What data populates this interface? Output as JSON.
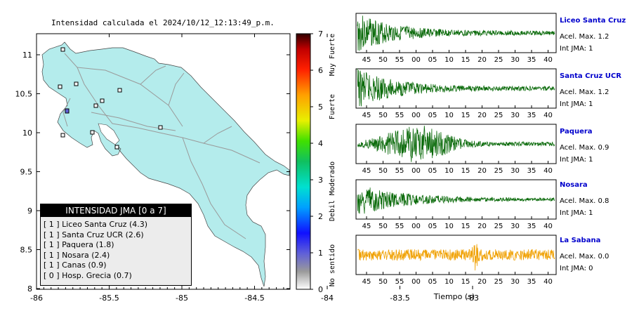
{
  "map": {
    "title": "Intensidad calculada el 2024/10/12_12:13:49_p.m.",
    "lat_ticks": [
      "11",
      "10.5",
      "10",
      "9.5",
      "9",
      "8.5",
      "8"
    ],
    "lon_ticks": [
      "-86",
      "-85.5",
      "-85",
      "-84.5",
      "-84",
      "-83.5",
      "-83"
    ],
    "land_color": "#b4ecec",
    "road_color": "#9a9a9a",
    "stations": [
      "Liceo Santa Cruz",
      "Santa Cruz UCR",
      "Paquera",
      "Nosara",
      "Canas",
      "Hosp. Grecia"
    ]
  },
  "legend": {
    "header": "INTENSIDAD JMA [0 a 7]",
    "items": [
      "[ 1 ]  Liceo Santa Cruz (4.3)",
      "[ 1 ]  Santa Cruz UCR (2.6)",
      "[ 1 ]  Paquera (1.8)",
      "[ 1 ]  Nosara (2.4)",
      "[ 1 ]  Canas (0.9)",
      "[ 0 ]  Hosp. Grecia (0.7)"
    ]
  },
  "colorbar": {
    "ticks": [
      "7",
      "6",
      "5",
      "4",
      "3",
      "2",
      "1",
      "0"
    ],
    "labels": [
      "Muy Fuerte",
      "Fuerte",
      "Moderado",
      "Debil",
      "No sentido"
    ],
    "colors": [
      "#ffffff",
      "#8a8a8a",
      "#6f6fe0",
      "#1010ff",
      "#00a0ff",
      "#00e0d0",
      "#10c060",
      "#40e000",
      "#e8f000",
      "#ffa000",
      "#ff2000",
      "#c00000",
      "#300000"
    ]
  },
  "traces": {
    "time_ticks": [
      "45",
      "50",
      "55",
      "00",
      "05",
      "10",
      "15",
      "20",
      "25",
      "30",
      "35",
      "40"
    ],
    "xlabel": "Tiempo (s)",
    "panels": [
      {
        "name": "Liceo Santa Cruz",
        "acel": "Acel. Max. 1.2",
        "jma": "Int JMA: 1",
        "color": "#0a6a0a"
      },
      {
        "name": "Santa Cruz UCR",
        "acel": "Acel. Max. 1.2",
        "jma": "Int JMA: 1",
        "color": "#0a6a0a"
      },
      {
        "name": "Paquera",
        "acel": "Acel. Max. 0.9",
        "jma": "Int JMA: 1",
        "color": "#0a6a0a"
      },
      {
        "name": "Nosara",
        "acel": "Acel. Max. 0.8",
        "jma": "Int JMA: 1",
        "color": "#0a6a0a"
      },
      {
        "name": "La Sabana",
        "acel": "Acel. Max. 0.0",
        "jma": "Int JMA: 0",
        "color": "#f0a000"
      }
    ]
  },
  "chart_data": {
    "type": "line",
    "title": "Intensidad calculada el 2024/10/12_12:13:49_p.m.",
    "xlabel": "Tiempo (s)",
    "ylabel": "",
    "series": [
      {
        "name": "Liceo Santa Cruz",
        "peak_acceleration": 1.2,
        "jma_intensity": 1,
        "computed_intensity": 4.3
      },
      {
        "name": "Santa Cruz UCR",
        "peak_acceleration": 1.2,
        "jma_intensity": 1,
        "computed_intensity": 2.6
      },
      {
        "name": "Paquera",
        "peak_acceleration": 0.9,
        "jma_intensity": 1,
        "computed_intensity": 1.8
      },
      {
        "name": "Nosara",
        "peak_acceleration": 0.8,
        "jma_intensity": 1,
        "computed_intensity": 2.4
      },
      {
        "name": "La Sabana",
        "peak_acceleration": 0.0,
        "jma_intensity": 0
      },
      {
        "name": "Canas",
        "jma_intensity": 1,
        "computed_intensity": 0.9
      },
      {
        "name": "Hosp. Grecia",
        "jma_intensity": 0,
        "computed_intensity": 0.7
      }
    ],
    "map_axes": {
      "lon_range": [
        -86,
        -82.5
      ],
      "lat_range": [
        8,
        11.3
      ]
    },
    "colorbar_range": [
      0,
      7
    ],
    "grid": false
  }
}
